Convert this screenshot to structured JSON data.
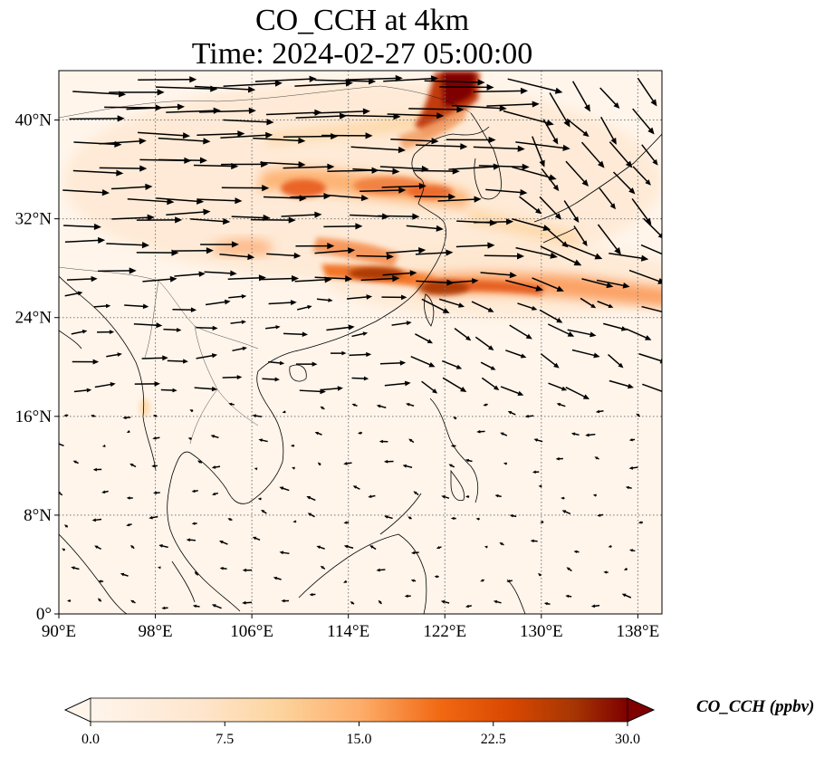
{
  "title_line1": "CO_CCH at 4km",
  "title_line2": "Time: 2024-02-27 05:00:00",
  "map": {
    "lon_range": [
      90,
      140
    ],
    "lat_range": [
      0,
      44
    ],
    "lon_ticks": [
      {
        "value": 90,
        "label": "90°E"
      },
      {
        "value": 98,
        "label": "98°E"
      },
      {
        "value": 106,
        "label": "106°E"
      },
      {
        "value": 114,
        "label": "114°E"
      },
      {
        "value": 122,
        "label": "122°E"
      },
      {
        "value": 130,
        "label": "130°E"
      },
      {
        "value": 138,
        "label": "138°E"
      }
    ],
    "lat_ticks": [
      {
        "value": 0,
        "label": "0°"
      },
      {
        "value": 8,
        "label": "8°N"
      },
      {
        "value": 16,
        "label": "16°N"
      },
      {
        "value": 24,
        "label": "24°N"
      },
      {
        "value": 32,
        "label": "32°N"
      },
      {
        "value": 40,
        "label": "40°N"
      }
    ],
    "gridlines": "dotted",
    "colormap_colors": [
      "#fff5eb",
      "#fdd49e",
      "#fdae6b",
      "#f16913",
      "#d94801",
      "#a63603",
      "#7f0000"
    ]
  },
  "colorbar": {
    "label": "CO_CCH (ppbv)",
    "min": 0,
    "max": 30,
    "extend": "both",
    "ticks": [
      {
        "value": 0,
        "label": "0.0"
      },
      {
        "value": 7.5,
        "label": "7.5"
      },
      {
        "value": 15,
        "label": "15.0"
      },
      {
        "value": 22.5,
        "label": "22.5"
      },
      {
        "value": 30,
        "label": "30.0"
      }
    ]
  },
  "plumes": [
    {
      "lon": [
        122.5,
        125
      ],
      "lat": [
        39,
        44
      ],
      "value": 30
    },
    {
      "lon": [
        116,
        123
      ],
      "lat": [
        36,
        41
      ],
      "value": 12
    },
    {
      "lon": [
        108,
        122
      ],
      "lat": [
        33,
        36.5
      ],
      "value": 20
    },
    {
      "lon": [
        112,
        140
      ],
      "lat": [
        25,
        29
      ],
      "value": 20
    },
    {
      "lon": [
        102,
        112
      ],
      "lat": [
        29,
        32
      ],
      "value": 8
    }
  ]
}
